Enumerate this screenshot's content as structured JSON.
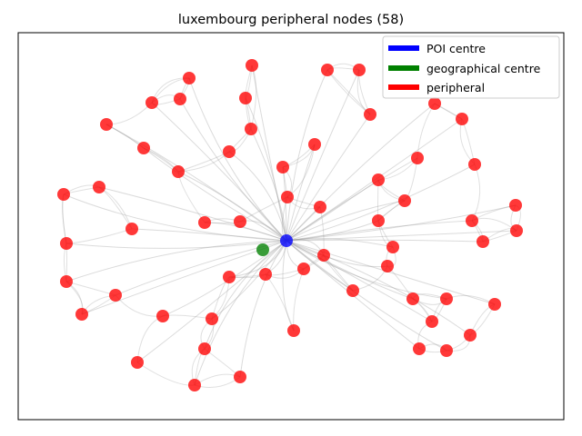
{
  "chart_data": {
    "type": "scatter",
    "title": "luxembourg peripheral nodes (58)",
    "xlabel": "",
    "ylabel": "",
    "grid": false,
    "axes_ticks": false,
    "legend_position": "top-right",
    "legend": [
      {
        "label": "POI centre",
        "color": "#0000ff"
      },
      {
        "label": "geographical centre",
        "color": "#008000"
      },
      {
        "label": "peripheral",
        "color": "#ff0000"
      }
    ],
    "series": [
      {
        "name": "POI centre",
        "color": "#0000ff",
        "points": [
          [
            315,
            265
          ]
        ]
      },
      {
        "name": "geographical centre",
        "color": "#008000",
        "points": [
          [
            289,
            275
          ]
        ]
      },
      {
        "name": "peripheral",
        "color": "#ff0000",
        "points": [
          [
            277,
            72
          ],
          [
            360,
            77
          ],
          [
            395,
            77
          ],
          [
            208,
            86
          ],
          [
            167,
            113
          ],
          [
            198,
            109
          ],
          [
            270,
            108
          ],
          [
            478,
            114
          ],
          [
            407,
            126
          ],
          [
            508,
            131
          ],
          [
            117,
            137
          ],
          [
            276,
            142
          ],
          [
            158,
            163
          ],
          [
            252,
            167
          ],
          [
            346,
            159
          ],
          [
            459,
            174
          ],
          [
            522,
            181
          ],
          [
            196,
            189
          ],
          [
            311,
            184
          ],
          [
            416,
            198
          ],
          [
            109,
            206
          ],
          [
            70,
            214
          ],
          [
            316,
            217
          ],
          [
            445,
            221
          ],
          [
            352,
            228
          ],
          [
            567,
            226
          ],
          [
            225,
            245
          ],
          [
            264,
            244
          ],
          [
            145,
            252
          ],
          [
            416,
            243
          ],
          [
            519,
            243
          ],
          [
            568,
            254
          ],
          [
            73,
            268
          ],
          [
            531,
            266
          ],
          [
            432,
            272
          ],
          [
            356,
            281
          ],
          [
            334,
            296
          ],
          [
            426,
            293
          ],
          [
            252,
            305
          ],
          [
            292,
            302
          ],
          [
            73,
            310
          ],
          [
            127,
            325
          ],
          [
            388,
            320
          ],
          [
            454,
            329
          ],
          [
            491,
            329
          ],
          [
            544,
            335
          ],
          [
            90,
            346
          ],
          [
            179,
            348
          ],
          [
            233,
            351
          ],
          [
            475,
            354
          ],
          [
            323,
            364
          ],
          [
            517,
            369
          ],
          [
            225,
            384
          ],
          [
            461,
            384
          ],
          [
            491,
            386
          ],
          [
            151,
            399
          ],
          [
            264,
            415
          ],
          [
            214,
            424
          ]
        ]
      }
    ]
  }
}
